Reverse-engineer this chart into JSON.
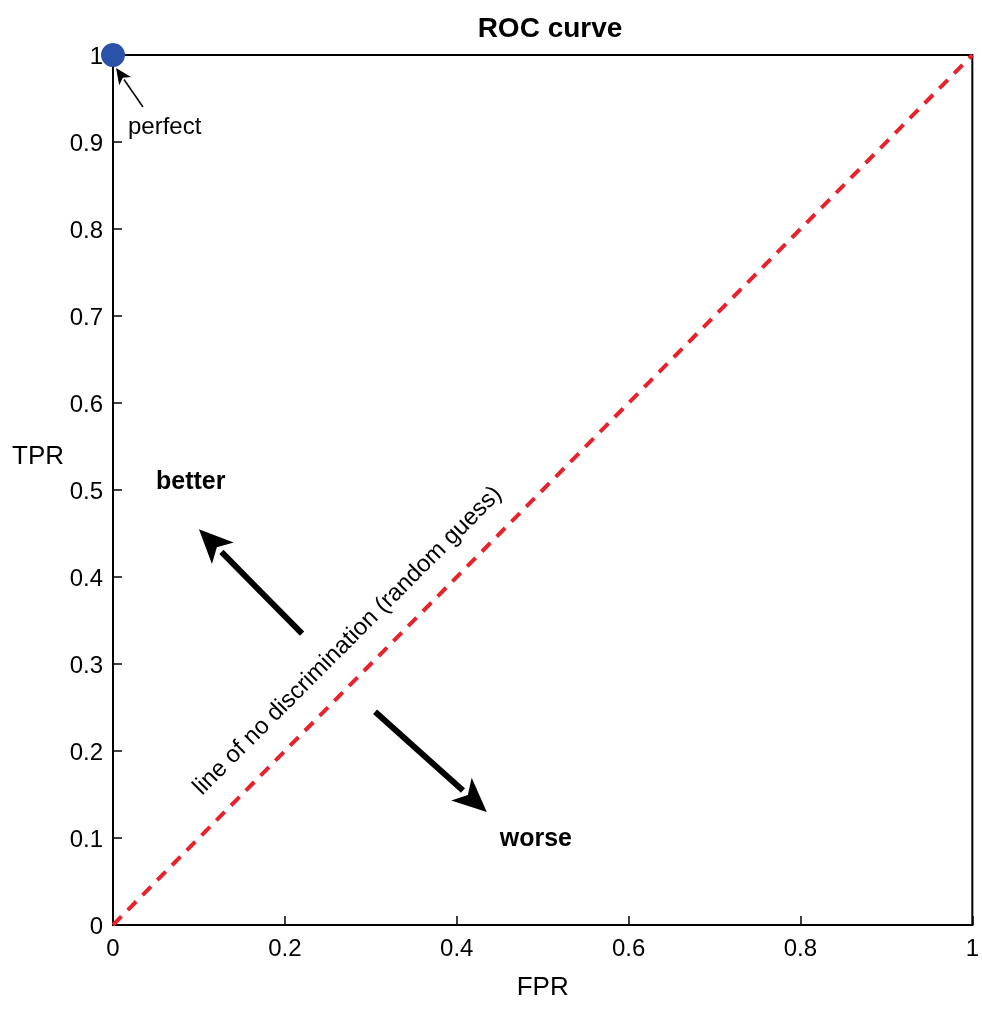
{
  "chart_data": {
    "type": "line",
    "title": "ROC curve",
    "xlabel": "FPR",
    "ylabel": "TPR",
    "x": [
      0,
      1
    ],
    "series": [
      {
        "type": "line",
        "color": "#e8222a",
        "values": [
          0,
          1
        ],
        "line_style": "dashed",
        "marker": "none"
      },
      {
        "type": "scatter",
        "color": "#2a52a8",
        "x": [
          0
        ],
        "values": [
          1
        ],
        "marker": "circle"
      }
    ],
    "xlim": [
      0,
      1
    ],
    "xticks": [
      0,
      0.2,
      0.4,
      0.6,
      0.8,
      1
    ],
    "ylim": [
      0,
      1
    ],
    "yticks": [
      0,
      0.1,
      0.2,
      0.3,
      0.4,
      0.5,
      0.6,
      0.7,
      0.8,
      0.9,
      1
    ],
    "grid": false,
    "annotations": [
      {
        "text": "perfect",
        "x": 0,
        "y": 1
      },
      "better",
      "worse",
      {
        "text": "line of no discrimination (random guess)",
        "x": 0.3,
        "y": 0.3
      }
    ]
  }
}
